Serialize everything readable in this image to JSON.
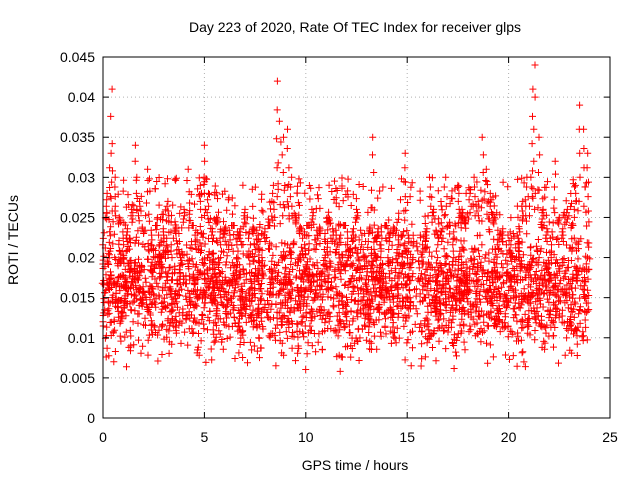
{
  "chart_data": {
    "type": "scatter",
    "title": "Day 223 of 2020, Rate Of TEC Index for receiver glps",
    "xlabel": "GPS time / hours",
    "ylabel": "ROTI / TECUs",
    "xlim": [
      0,
      25
    ],
    "ylim": [
      0,
      0.045
    ],
    "xticks": [
      0,
      5,
      10,
      15,
      20,
      25
    ],
    "xtick_labels": [
      "0",
      "5",
      "10",
      "15",
      "20",
      "25"
    ],
    "yticks": [
      0,
      0.005,
      0.01,
      0.015,
      0.02,
      0.025,
      0.03,
      0.035,
      0.04,
      0.045
    ],
    "ytick_labels": [
      "0",
      "0.005",
      "0.01",
      "0.015",
      "0.02",
      "0.025",
      "0.03",
      "0.035",
      "0.04",
      "0.045"
    ],
    "grid": true,
    "marker": "+",
    "color": "#ff0000",
    "series": [
      {
        "name": "ROTI",
        "x": [
          0.0,
          0.2,
          0.4,
          0.45,
          0.6,
          0.8,
          1.0,
          1.2,
          1.4,
          1.6,
          1.8,
          2.0,
          2.2,
          2.4,
          2.6,
          2.8,
          3.0,
          3.2,
          3.4,
          3.6,
          3.8,
          4.0,
          4.2,
          4.4,
          4.6,
          4.8,
          5.0,
          5.2,
          5.4,
          5.6,
          5.8,
          6.0,
          6.2,
          6.4,
          6.6,
          6.8,
          7.0,
          7.2,
          7.4,
          7.6,
          7.8,
          8.0,
          8.2,
          8.4,
          8.6,
          8.7,
          8.9,
          9.1,
          9.3,
          9.5,
          9.7,
          9.9,
          10.1,
          10.3,
          10.5,
          10.7,
          10.9,
          11.1,
          11.3,
          11.5,
          11.7,
          11.9,
          12.1,
          12.3,
          12.5,
          12.7,
          12.9,
          13.1,
          13.3,
          13.5,
          13.7,
          13.9,
          14.1,
          14.3,
          14.5,
          14.7,
          14.9,
          15.1,
          15.3,
          15.5,
          15.7,
          15.9,
          16.1,
          16.3,
          16.5,
          16.7,
          16.9,
          17.1,
          17.3,
          17.5,
          17.7,
          17.9,
          18.1,
          18.3,
          18.5,
          18.7,
          18.9,
          19.1,
          19.3,
          19.5,
          19.7,
          19.9,
          20.1,
          20.3,
          20.5,
          20.7,
          20.9,
          21.1,
          21.2,
          21.3,
          21.5,
          21.7,
          21.9,
          22.1,
          22.3,
          22.5,
          22.7,
          22.9,
          23.1,
          23.3,
          23.5,
          23.7,
          23.9
        ],
        "y": [
          0.012,
          0.028,
          0.033,
          0.041,
          0.03,
          0.025,
          0.02,
          0.022,
          0.026,
          0.034,
          0.027,
          0.023,
          0.031,
          0.021,
          0.024,
          0.018,
          0.022,
          0.027,
          0.02,
          0.023,
          0.019,
          0.026,
          0.031,
          0.024,
          0.021,
          0.029,
          0.034,
          0.028,
          0.022,
          0.025,
          0.02,
          0.023,
          0.021,
          0.024,
          0.02,
          0.022,
          0.026,
          0.02,
          0.023,
          0.021,
          0.019,
          0.022,
          0.024,
          0.029,
          0.042,
          0.037,
          0.035,
          0.036,
          0.03,
          0.025,
          0.023,
          0.02,
          0.024,
          0.026,
          0.021,
          0.023,
          0.019,
          0.025,
          0.022,
          0.021,
          0.018,
          0.024,
          0.02,
          0.022,
          0.026,
          0.021,
          0.019,
          0.023,
          0.035,
          0.022,
          0.02,
          0.024,
          0.019,
          0.023,
          0.021,
          0.018,
          0.033,
          0.016,
          0.014,
          0.013,
          0.018,
          0.022,
          0.03,
          0.026,
          0.02,
          0.022,
          0.03,
          0.024,
          0.02,
          0.029,
          0.026,
          0.025,
          0.028,
          0.03,
          0.027,
          0.035,
          0.031,
          0.028,
          0.025,
          0.021,
          0.022,
          0.018,
          0.02,
          0.017,
          0.022,
          0.027,
          0.03,
          0.03,
          0.041,
          0.044,
          0.035,
          0.026,
          0.022,
          0.02,
          0.032,
          0.025,
          0.022,
          0.026,
          0.024,
          0.029,
          0.039,
          0.036,
          0.033
        ]
      }
    ],
    "band": {
      "description": "dense cloud of points across 0-24 h",
      "typical_low": 0.005,
      "typical_high": 0.024,
      "center": 0.013
    }
  }
}
